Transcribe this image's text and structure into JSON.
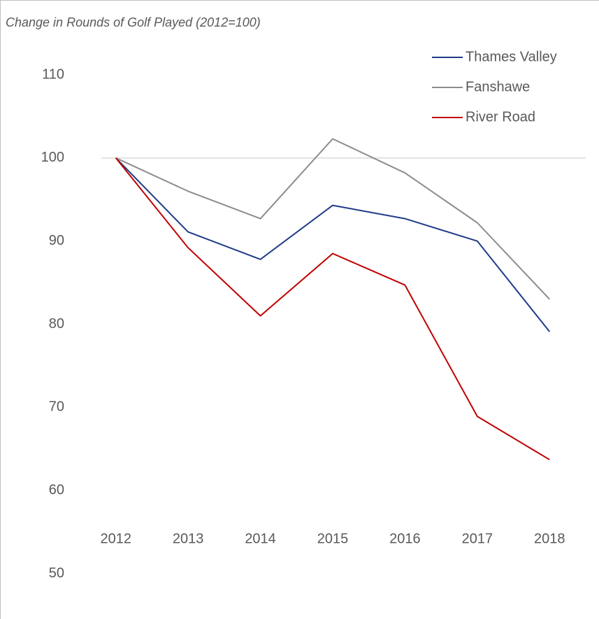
{
  "chart_data": {
    "type": "line",
    "title": "Change in Rounds of Golf Played (2012=100)",
    "categories": [
      "2012",
      "2013",
      "2014",
      "2015",
      "2016",
      "2017",
      "2018"
    ],
    "series": [
      {
        "name": "Thames Valley",
        "color": "#1f3c88",
        "values": [
          100,
          91.1,
          87.8,
          94.3,
          92.7,
          90.0,
          79.1
        ]
      },
      {
        "name": "Fanshawe",
        "color": "#8c8c8c",
        "values": [
          100,
          96.0,
          92.7,
          102.3,
          98.2,
          92.2,
          83.0
        ]
      },
      {
        "name": "River Road",
        "color": "#c00000",
        "values": [
          100,
          89.2,
          81.0,
          88.5,
          84.7,
          68.9,
          63.7
        ]
      }
    ],
    "ylim": [
      50,
      110
    ],
    "yticks": [
      50,
      60,
      70,
      80,
      90,
      100,
      110
    ],
    "reference_line": 100,
    "legend": "upper right",
    "grid": false
  }
}
